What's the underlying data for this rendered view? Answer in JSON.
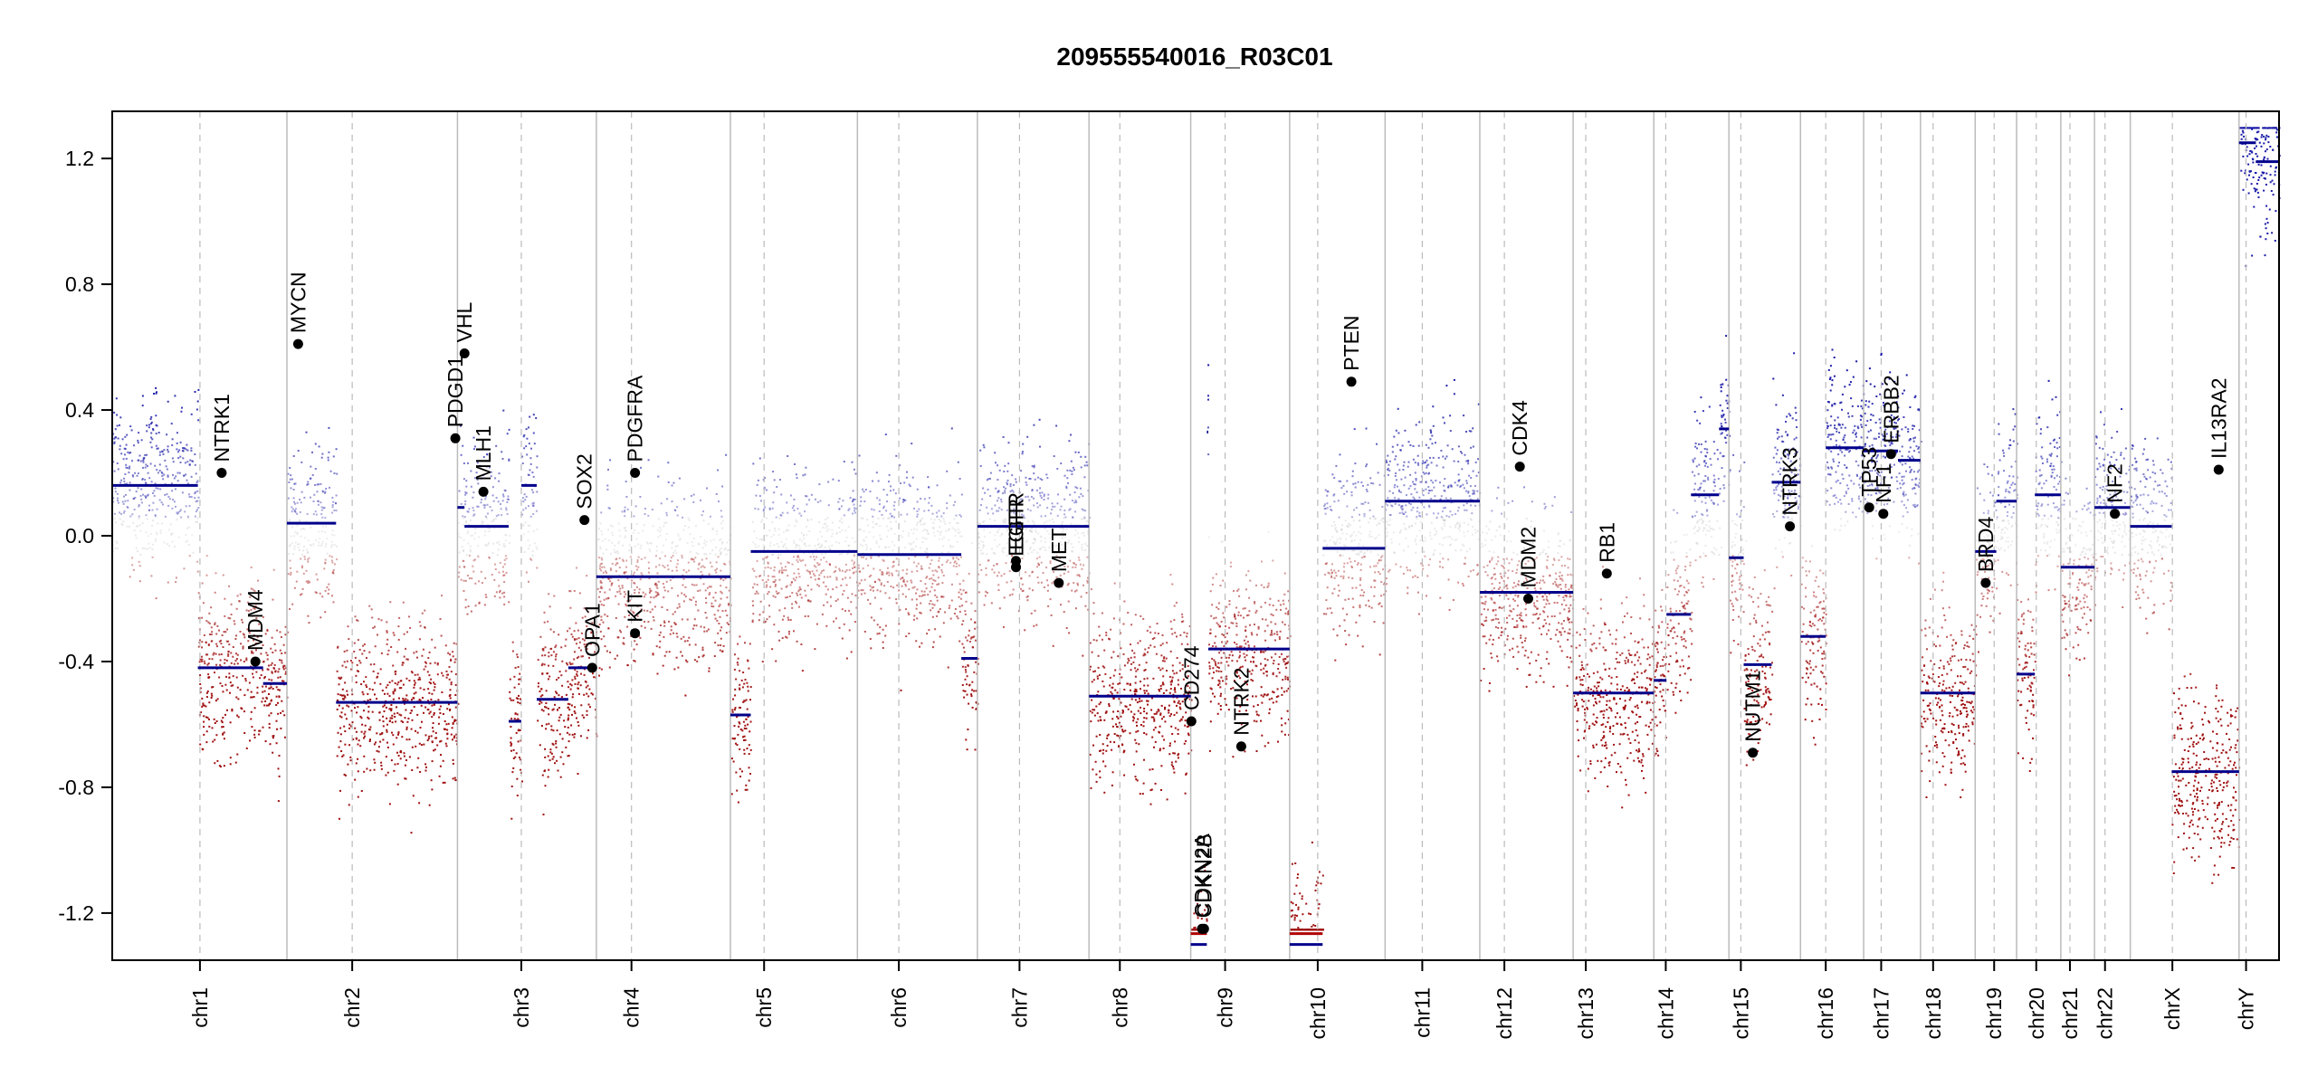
{
  "chart_data": {
    "type": "scatter",
    "title": "209555540016_R03C01",
    "ylim": [
      -1.35,
      1.35
    ],
    "yticks": [
      "-1.2",
      "-0.8",
      "-0.4",
      "0.0",
      "0.4",
      "0.8",
      "1.2"
    ],
    "ytick_values": [
      -1.2,
      -0.8,
      -0.4,
      0.0,
      0.4,
      0.8,
      1.2
    ],
    "grid": false,
    "colors": {
      "gain": "#1a1aa8",
      "loss": "#a01010",
      "neutral": "#b8b8b8",
      "segment": "#00008b",
      "segment_loss": "#b00000",
      "divider": "#bbbbbb",
      "centromere": "#bbbbbb"
    },
    "chromosomes": [
      {
        "name": "chr1",
        "start": 0,
        "end": 249,
        "centromere": 125,
        "segments": [
          [
            0,
            122,
            0.16
          ],
          [
            122,
            215,
            -0.42
          ],
          [
            215,
            249,
            -0.47
          ]
        ]
      },
      {
        "name": "chr2",
        "start": 249,
        "end": 492,
        "centromere": 342,
        "segments": [
          [
            249,
            319,
            0.04
          ],
          [
            319,
            492,
            -0.53
          ]
        ]
      },
      {
        "name": "chr3",
        "start": 492,
        "end": 690,
        "centromere": 583,
        "segments": [
          [
            492,
            502,
            0.09
          ],
          [
            502,
            565,
            0.03
          ],
          [
            565,
            583,
            -0.59
          ],
          [
            583,
            605,
            0.16
          ],
          [
            605,
            650,
            -0.52
          ],
          [
            650,
            690,
            -0.42
          ]
        ]
      },
      {
        "name": "chr4",
        "start": 690,
        "end": 881,
        "centromere": 740,
        "segments": [
          [
            690,
            881,
            -0.13
          ]
        ]
      },
      {
        "name": "chr5",
        "start": 881,
        "end": 1062,
        "centromere": 929,
        "segments": [
          [
            881,
            910,
            -0.57
          ],
          [
            910,
            1062,
            -0.05
          ]
        ]
      },
      {
        "name": "chr6",
        "start": 1062,
        "end": 1233,
        "centromere": 1121,
        "segments": [
          [
            1062,
            1210,
            -0.06
          ],
          [
            1210,
            1233,
            -0.39
          ]
        ]
      },
      {
        "name": "chr7",
        "start": 1233,
        "end": 1392,
        "centromere": 1293,
        "segments": [
          [
            1233,
            1392,
            0.03
          ]
        ]
      },
      {
        "name": "chr8",
        "start": 1392,
        "end": 1537,
        "centromere": 1436,
        "segments": [
          [
            1392,
            1537,
            -0.51
          ]
        ]
      },
      {
        "name": "chr9",
        "start": 1537,
        "end": 1678,
        "centromere": 1586,
        "segments": [
          [
            1537,
            1560,
            -1.3
          ],
          [
            1560,
            1562,
            0.33
          ],
          [
            1562,
            1678,
            -0.36
          ]
        ]
      },
      {
        "name": "chr10",
        "start": 1678,
        "end": 1814,
        "centromere": 1718,
        "segments": [
          [
            1678,
            1725,
            -1.3
          ],
          [
            1725,
            1814,
            -0.04
          ]
        ]
      },
      {
        "name": "chr11",
        "start": 1814,
        "end": 1949,
        "centromere": 1867,
        "segments": [
          [
            1814,
            1949,
            0.11
          ]
        ]
      },
      {
        "name": "chr12",
        "start": 1949,
        "end": 2082,
        "centromere": 1984,
        "segments": [
          [
            1949,
            2082,
            -0.18
          ]
        ]
      },
      {
        "name": "chr13",
        "start": 2082,
        "end": 2197,
        "centromere": 2100,
        "segments": [
          [
            2082,
            2197,
            -0.5
          ]
        ]
      },
      {
        "name": "chr14",
        "start": 2197,
        "end": 2304,
        "centromere": 2214,
        "segments": [
          [
            2197,
            2215,
            -0.46
          ],
          [
            2215,
            2250,
            -0.25
          ],
          [
            2250,
            2290,
            0.13
          ],
          [
            2290,
            2304,
            0.34
          ]
        ]
      },
      {
        "name": "chr15",
        "start": 2304,
        "end": 2406,
        "centromere": 2321,
        "segments": [
          [
            2304,
            2325,
            -0.07
          ],
          [
            2325,
            2365,
            -0.41
          ],
          [
            2365,
            2406,
            0.17
          ]
        ]
      },
      {
        "name": "chr16",
        "start": 2406,
        "end": 2496,
        "centromere": 2442,
        "segments": [
          [
            2406,
            2442,
            -0.32
          ],
          [
            2442,
            2496,
            0.28
          ]
        ]
      },
      {
        "name": "chr17",
        "start": 2496,
        "end": 2577,
        "centromere": 2521,
        "segments": [
          [
            2496,
            2545,
            0.27
          ],
          [
            2545,
            2577,
            0.24
          ]
        ]
      },
      {
        "name": "chr18",
        "start": 2577,
        "end": 2655,
        "centromere": 2595,
        "segments": [
          [
            2577,
            2655,
            -0.5
          ]
        ]
      },
      {
        "name": "chr19",
        "start": 2655,
        "end": 2714,
        "centromere": 2682,
        "segments": [
          [
            2655,
            2685,
            -0.05
          ],
          [
            2685,
            2714,
            0.11
          ]
        ]
      },
      {
        "name": "chr20",
        "start": 2714,
        "end": 2777,
        "centromere": 2742,
        "segments": [
          [
            2714,
            2740,
            -0.44
          ],
          [
            2740,
            2777,
            0.13
          ]
        ]
      },
      {
        "name": "chr21",
        "start": 2777,
        "end": 2825,
        "centromere": 2790,
        "segments": [
          [
            2777,
            2825,
            -0.1
          ]
        ]
      },
      {
        "name": "chr22",
        "start": 2825,
        "end": 2876,
        "centromere": 2840,
        "segments": [
          [
            2825,
            2876,
            0.09
          ]
        ]
      },
      {
        "name": "chrX",
        "start": 2876,
        "end": 3031,
        "centromere": 2936,
        "segments": [
          [
            2876,
            2935,
            0.03
          ],
          [
            2935,
            3031,
            -0.75
          ]
        ]
      },
      {
        "name": "chrY",
        "start": 3031,
        "end": 3088,
        "centromere": 3041,
        "segments": [
          [
            3031,
            3055,
            1.25
          ],
          [
            3055,
            3088,
            1.19
          ]
        ]
      }
    ],
    "genes": [
      {
        "name": "NTRK1",
        "x": 156,
        "y": 0.2
      },
      {
        "name": "MDM4",
        "x": 204,
        "y": -0.4
      },
      {
        "name": "MYCN",
        "x": 265,
        "y": 0.61
      },
      {
        "name": "PDGD1",
        "x": 489,
        "y": 0.31
      },
      {
        "name": "VHL",
        "x": 502,
        "y": 0.58
      },
      {
        "name": "MLH1",
        "x": 529,
        "y": 0.14
      },
      {
        "name": "SOX2",
        "x": 673,
        "y": 0.05
      },
      {
        "name": "OPA1",
        "x": 684,
        "y": -0.42
      },
      {
        "name": "PDGFRA",
        "x": 745,
        "y": 0.2
      },
      {
        "name": "KIT",
        "x": 745,
        "y": -0.31
      },
      {
        "name": "EGFR",
        "x": 1288,
        "y": -0.08
      },
      {
        "name": "EGFR",
        "x": 1288,
        "y": -0.1
      },
      {
        "name": "MET",
        "x": 1349,
        "y": -0.15
      },
      {
        "name": "CD274",
        "x": 1538,
        "y": -0.59
      },
      {
        "name": "CDKN2A",
        "x": 1553,
        "y": -1.25
      },
      {
        "name": "CDKN2B",
        "x": 1556,
        "y": -1.25
      },
      {
        "name": "NTRK2",
        "x": 1609,
        "y": -0.67
      },
      {
        "name": "PTEN",
        "x": 1766,
        "y": 0.49
      },
      {
        "name": "CDK4",
        "x": 2006,
        "y": 0.22
      },
      {
        "name": "MDM2",
        "x": 2018,
        "y": -0.2
      },
      {
        "name": "RB1",
        "x": 2130,
        "y": -0.12
      },
      {
        "name": "NUTM1",
        "x": 2338,
        "y": -0.69
      },
      {
        "name": "NTRK3",
        "x": 2391,
        "y": 0.03
      },
      {
        "name": "TP53",
        "x": 2504,
        "y": 0.09
      },
      {
        "name": "NF1",
        "x": 2524,
        "y": 0.07
      },
      {
        "name": "ERBB2",
        "x": 2535,
        "y": 0.26
      },
      {
        "name": "BRD4",
        "x": 2670,
        "y": -0.15
      },
      {
        "name": "NF2",
        "x": 2854,
        "y": 0.07
      },
      {
        "name": "IL13RA2",
        "x": 3002,
        "y": 0.21
      }
    ]
  }
}
